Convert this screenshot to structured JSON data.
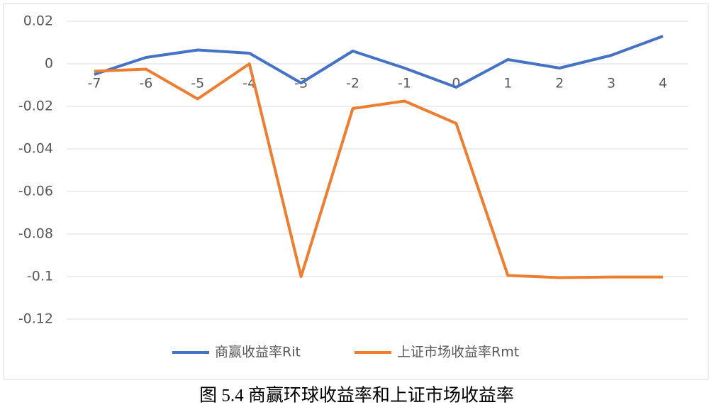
{
  "chart_data": {
    "type": "line",
    "x": [
      -7,
      -6,
      -5,
      -4,
      -3,
      -2,
      -1,
      0,
      1,
      2,
      3,
      4
    ],
    "xlim": [
      -7,
      4
    ],
    "xticks": [
      -7,
      -6,
      -5,
      -4,
      -3,
      -2,
      -1,
      0,
      1,
      2,
      3,
      4
    ],
    "ylim": [
      -0.12,
      0.02
    ],
    "yticks": [
      0.02,
      0,
      -0.02,
      -0.04,
      -0.06,
      -0.08,
      -0.1,
      -0.12
    ],
    "grid": true,
    "legend": "bottom",
    "series": [
      {
        "name": "商赢收益率Rit",
        "color": "#4472c4",
        "values": [
          -0.005,
          0.003,
          0.0065,
          0.005,
          -0.009,
          0.006,
          -0.002,
          -0.011,
          0.002,
          -0.002,
          0.004,
          0.013
        ]
      },
      {
        "name": "上证市场收益率Rmt",
        "color": "#ed7d31",
        "values": [
          -0.0035,
          -0.0025,
          -0.0165,
          0,
          -0.1,
          -0.021,
          -0.0175,
          -0.028,
          -0.0995,
          -0.1005,
          -0.1002,
          -0.1002
        ]
      }
    ]
  },
  "caption": "图 5.4 商赢环球收益率和上证市场收益率"
}
